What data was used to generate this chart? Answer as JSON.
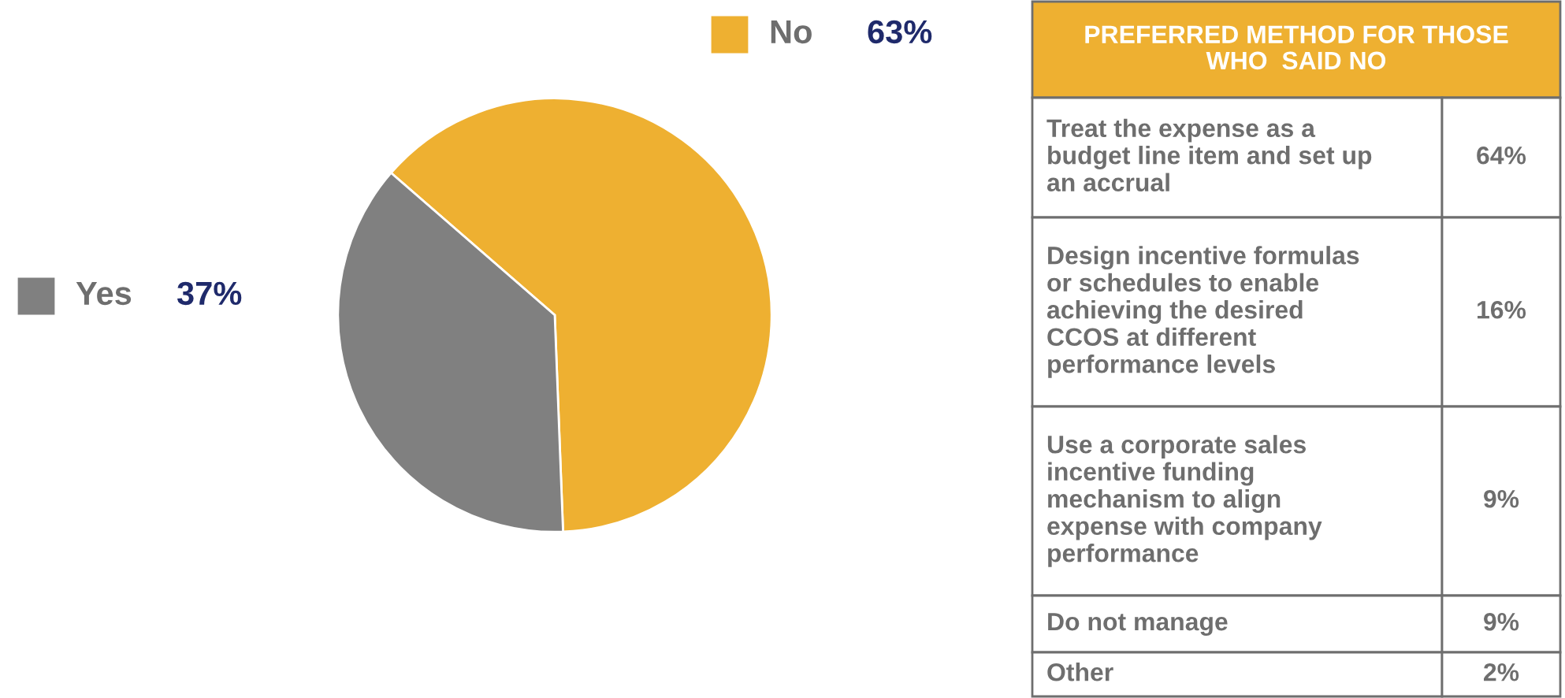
{
  "chart_data": [
    {
      "type": "pie",
      "categories": [
        "No",
        "Yes"
      ],
      "values": [
        63,
        37
      ],
      "colors": [
        "#eeb031",
        "#808080"
      ],
      "value_labels": [
        "63%",
        "37%"
      ],
      "legend": "left"
    },
    {
      "type": "other",
      "title": "PREFERRED METHOD FOR THOSE\nWHO  SAID NO",
      "categories": [
        "Treat the expense as a\nbudget line item and set up\nan accrual",
        "Design incentive formulas\nor schedules to enable\nachieving the desired\nCCOS at different\nperformance levels",
        "Use a corporate sales\nincentive funding\nmechanism to align\nexpense with company\nperformance",
        "Do not manage",
        "Other"
      ],
      "values": [
        64,
        16,
        9,
        9,
        2
      ],
      "value_labels": [
        "64%",
        "16%",
        "9%",
        "9%",
        "2%"
      ]
    }
  ]
}
